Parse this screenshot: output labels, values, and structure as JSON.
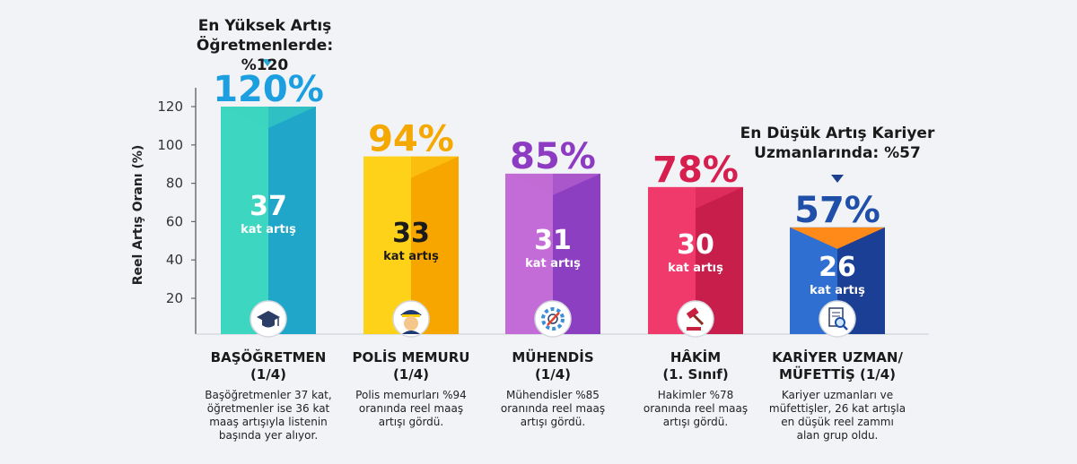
{
  "chart_data": {
    "type": "bar",
    "ylabel": "Reel Artış Oranı (%)",
    "yticks": [
      20,
      40,
      60,
      80,
      100,
      120
    ],
    "ylim": [
      0,
      120
    ],
    "categories": [
      "BAŞÖĞRETMEN",
      "POLİS MEMURU",
      "MÜHENDİS",
      "HÂKİM",
      "KARİYER UZMAN/"
    ],
    "values": [
      120,
      94,
      85,
      78,
      57
    ],
    "value_labels": [
      "120%",
      "94%",
      "85%",
      "78%",
      "57%"
    ],
    "multipliers": [
      "37",
      "33",
      "31",
      "30",
      "26"
    ],
    "multiplier_suffix": "kat artış"
  },
  "categories": [
    {
      "name": "BAŞÖĞRETMEN",
      "sub": "(1/4)",
      "desc": [
        "Başöğretmenler 37 kat,",
        "öğretmenler ise 36 kat",
        "maaş artışıyla listenin",
        "başında yer alıyor."
      ],
      "icon": "graduation-cap-icon",
      "color_light": "#3dd6c0",
      "color_dark": "#1fa6c9",
      "value_color": "#1b9fe0",
      "text_color": "#ffffff"
    },
    {
      "name": "POLİS MEMURU",
      "sub": "(1/4)",
      "desc": [
        "Polis memurları %94",
        "oranında reel maaş",
        "artışı gördü."
      ],
      "icon": "police-officer-icon",
      "color_light": "#ffd21a",
      "color_dark": "#f7a600",
      "value_color": "#f5a800",
      "text_color": "#1a1a1a"
    },
    {
      "name": "MÜHENDİS",
      "sub": "(1/4)",
      "desc": [
        "Mühendisler %85",
        "oranında reel maaş",
        "artışı gördü."
      ],
      "icon": "gear-wrench-icon",
      "color_light": "#c36bd6",
      "color_dark": "#8d3fc2",
      "value_color": "#8e3bc4",
      "text_color": "#ffffff"
    },
    {
      "name": "HÂKİM",
      "sub": "(1. Sınıf)",
      "desc": [
        "Hakimler %78",
        "oranında reel maaş",
        "artışı gördü."
      ],
      "icon": "gavel-icon",
      "color_light": "#f03a6b",
      "color_dark": "#c81e4b",
      "value_color": "#d61f4f",
      "text_color": "#ffffff"
    },
    {
      "name": "KARİYER UZMAN/",
      "sub": "MÜFETTİŞ (1/4)",
      "desc": [
        "Kariyer uzmanları ve",
        "müfettişler, 26 kat artışla",
        "en düşük reel zammı",
        "alan grup oldu."
      ],
      "icon": "document-search-icon",
      "color_light": "#2e6fd1",
      "color_dark": "#1c3f96",
      "value_color": "#1f4fa8",
      "text_color": "#ffffff"
    }
  ],
  "annotations": {
    "highest_line1": "En Yüksek Artış",
    "highest_line2": "Öğretmenlerde: %120",
    "lowest_line1": "En Düşük Artış Kariyer",
    "lowest_line2": "Uzmanlarında: %57"
  },
  "colors": {
    "background": "#f1f3f6",
    "arrow": "#2aa9d6",
    "arrow_low": "#1f3f8f",
    "orange_cap": "#ff8a1a"
  }
}
